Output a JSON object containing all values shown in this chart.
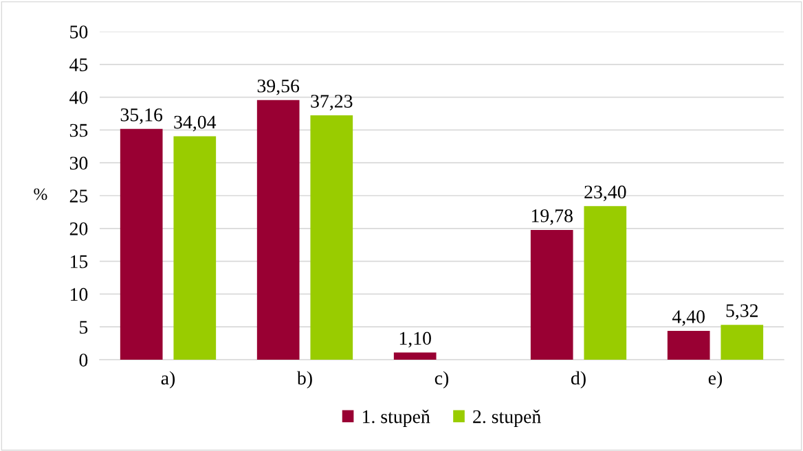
{
  "chart_data": {
    "type": "bar",
    "ylabel": "%",
    "categories": [
      "a)",
      "b)",
      "c)",
      "d)",
      "e)"
    ],
    "series": [
      {
        "name": "1. stupeň",
        "color": "#990033",
        "values": [
          35.16,
          39.56,
          1.1,
          19.78,
          4.4
        ],
        "value_labels": [
          "35,16",
          "39,56",
          "1,10",
          "19,78",
          "4,40"
        ]
      },
      {
        "name": "2. stupeň",
        "color": "#99cc00",
        "values": [
          34.04,
          37.23,
          null,
          23.4,
          5.32
        ],
        "value_labels": [
          "34,04",
          "37,23",
          null,
          "23,40",
          "5,32"
        ]
      }
    ],
    "ylim": [
      0,
      50
    ],
    "yticks": [
      0,
      5,
      10,
      15,
      20,
      25,
      30,
      35,
      40,
      45,
      50
    ],
    "grid": "y",
    "legend": "bottom"
  }
}
